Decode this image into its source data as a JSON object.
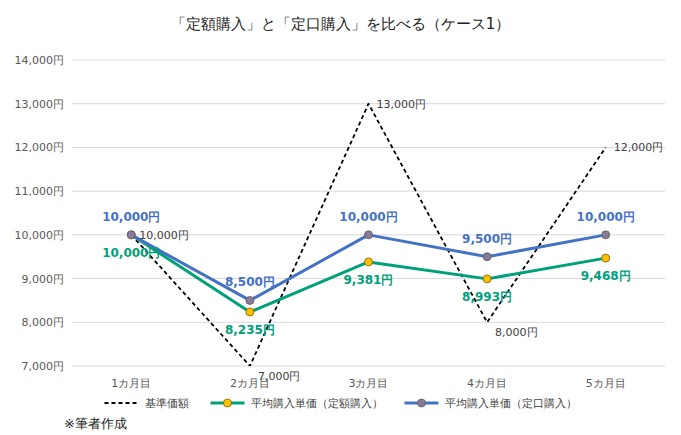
{
  "chart_data": {
    "type": "line",
    "title": "「定額購入」と「定口購入」を比べる（ケース1）",
    "source": "※筆者作成",
    "categories": [
      "1カ月目",
      "2カ月目",
      "3カ月目",
      "4カ月目",
      "5カ月目"
    ],
    "series": [
      {
        "name": "基準価額",
        "color": "#000000",
        "line_style": "dashed",
        "marker": "none",
        "values": [
          10000,
          7000,
          13000,
          8000,
          12000
        ],
        "value_labels": [
          "10,000円",
          "7,000円",
          "13,000円",
          "8,000円",
          "12,000円"
        ]
      },
      {
        "name": "平均購入単価（定額購入）",
        "color": "#00a07a",
        "line_style": "solid",
        "marker": "circle",
        "values": [
          10000,
          8235,
          9381,
          8993,
          9468
        ],
        "value_labels": [
          "10,000円",
          "8,235円",
          "9,381円",
          "8,993円",
          "9,468円"
        ]
      },
      {
        "name": "平均購入単価（定口購入）",
        "color": "#4472c4",
        "line_style": "solid",
        "marker": "circle",
        "values": [
          10000,
          8500,
          10000,
          9500,
          10000
        ],
        "value_labels": [
          "10,000円",
          "8,500円",
          "10,000円",
          "9,500円",
          "10,000円"
        ]
      }
    ],
    "ylim": [
      7000,
      14000
    ],
    "yticks": [
      {
        "value": 7000,
        "label": "7,000円"
      },
      {
        "value": 8000,
        "label": "8,000円"
      },
      {
        "value": 9000,
        "label": "9,000円"
      },
      {
        "value": 10000,
        "label": "10,000円"
      },
      {
        "value": 11000,
        "label": "11,000円"
      },
      {
        "value": 12000,
        "label": "12,000円"
      },
      {
        "value": 13000,
        "label": "13,000円"
      },
      {
        "value": 14000,
        "label": "14,000円"
      }
    ],
    "grid": true,
    "legend": "bottom",
    "data_labels": true
  }
}
